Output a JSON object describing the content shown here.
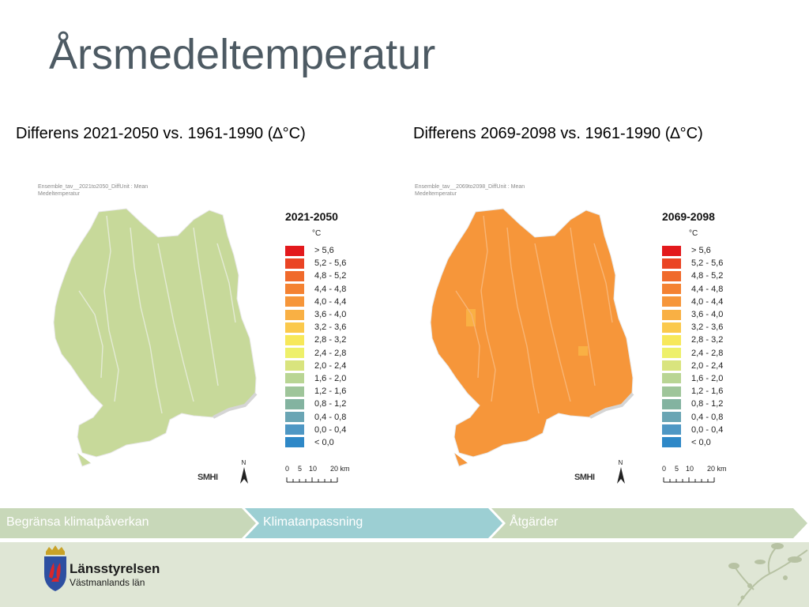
{
  "title": "Årsmedeltemperatur",
  "maps": [
    {
      "subtitle": "Differens 2021-2050 vs. 1961-1990 (∆°C)",
      "meta_line1": "Ensemble_tav__2021to2050_DiffUnit : Mean",
      "meta_line2": "Medeltemperatur",
      "legend_title": "2021-2050",
      "fill_color": "#c7d99a",
      "fill_class": "1,6 - 2,0"
    },
    {
      "subtitle": "Differens 2069-2098 vs. 1961-1990 (∆°C)",
      "meta_line1": "Ensemble_tav__2069to2098_DiffUnit : Mean",
      "meta_line2": "Medeltemperatur",
      "legend_title": "2069-2098",
      "fill_color": "#f6963a",
      "fill_class": "4,0 - 4,4"
    }
  ],
  "legend": {
    "unit": "°C",
    "classes": [
      {
        "label": "> 5,6",
        "color": "#e3191c"
      },
      {
        "label": "5,2 - 5,6",
        "color": "#ea4424"
      },
      {
        "label": "4,8 - 5,2",
        "color": "#f06a2b"
      },
      {
        "label": "4,4 - 4,8",
        "color": "#f48232"
      },
      {
        "label": "4,0 - 4,4",
        "color": "#f6963a"
      },
      {
        "label": "3,6 - 4,0",
        "color": "#f9b044"
      },
      {
        "label": "3,2 - 3,6",
        "color": "#fbc94c"
      },
      {
        "label": "2,8 - 3,2",
        "color": "#f7e85a"
      },
      {
        "label": "2,4 - 2,8",
        "color": "#eef06a"
      },
      {
        "label": "2,0 - 2,4",
        "color": "#d9e47e"
      },
      {
        "label": "1,6 - 2,0",
        "color": "#b9d594"
      },
      {
        "label": "1,2 - 1,6",
        "color": "#9fc59a"
      },
      {
        "label": "0,8 - 1,2",
        "color": "#83b3a0"
      },
      {
        "label": "0,4 - 0,8",
        "color": "#6aa5b4"
      },
      {
        "label": "0,0 - 0,4",
        "color": "#4e97c4"
      },
      {
        "label": "< 0,0",
        "color": "#2e88c7"
      }
    ]
  },
  "scale": {
    "t0": "0",
    "t1": "5",
    "t2": "10",
    "t3": "20 km"
  },
  "north_label": "N",
  "smhi_label": "SMHI",
  "nav": {
    "step1": "Begränsa klimatpåverkan",
    "step2": "Klimatanpassning",
    "step3": "Åtgärder",
    "color_inactive": "#c8d8b9",
    "color_active": "#9ccfd3"
  },
  "footer": {
    "org_name": "Länsstyrelsen",
    "org_sub": "Västmanlands län"
  }
}
